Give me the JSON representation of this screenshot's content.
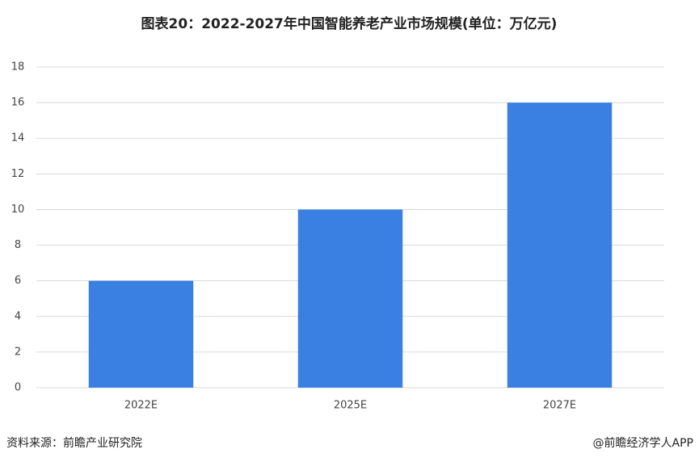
{
  "chart_data": {
    "type": "bar",
    "title": "图表20：2022-2027年中国智能养老产业市场规模(单位：万亿元)",
    "categories": [
      "2022E",
      "2025E",
      "2027E"
    ],
    "values": [
      6,
      10,
      16
    ],
    "color": "#3a80e2",
    "ylim": [
      0,
      18
    ],
    "yticks": [
      0,
      2,
      4,
      6,
      8,
      10,
      12,
      14,
      16,
      18
    ],
    "grid": true
  },
  "footer": {
    "source": "资料来源：前瞻产业研究院",
    "credit": "@前瞻经济学人APP"
  }
}
